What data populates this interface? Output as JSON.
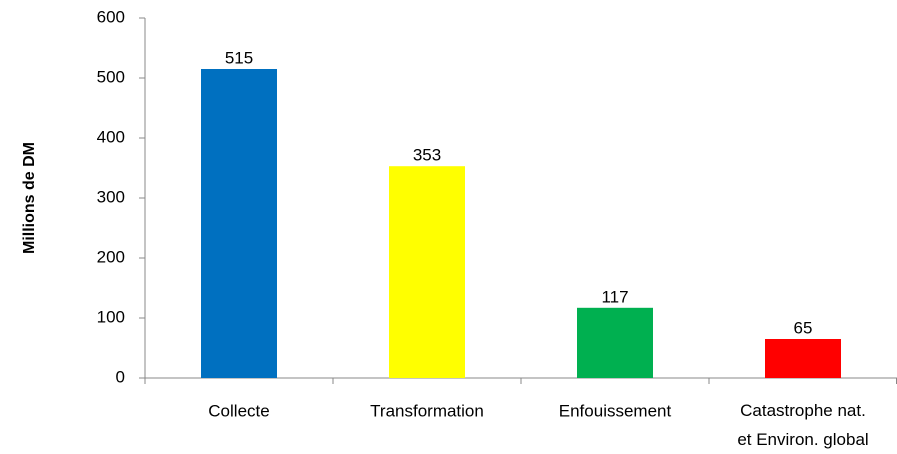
{
  "chart_data": {
    "type": "bar",
    "y_label": "Millions de DM",
    "categories": [
      "Collecte",
      "Transformation",
      "Enfouissement",
      "Catastrophe nat.\net Environ. global"
    ],
    "values": [
      515,
      353,
      117,
      65
    ],
    "colors": [
      "#0070c0",
      "#ffff00",
      "#00b050",
      "#ff0000"
    ],
    "ylim": [
      0,
      600
    ],
    "yticks": [
      0,
      100,
      200,
      300,
      400,
      500,
      600
    ],
    "grid": false
  }
}
